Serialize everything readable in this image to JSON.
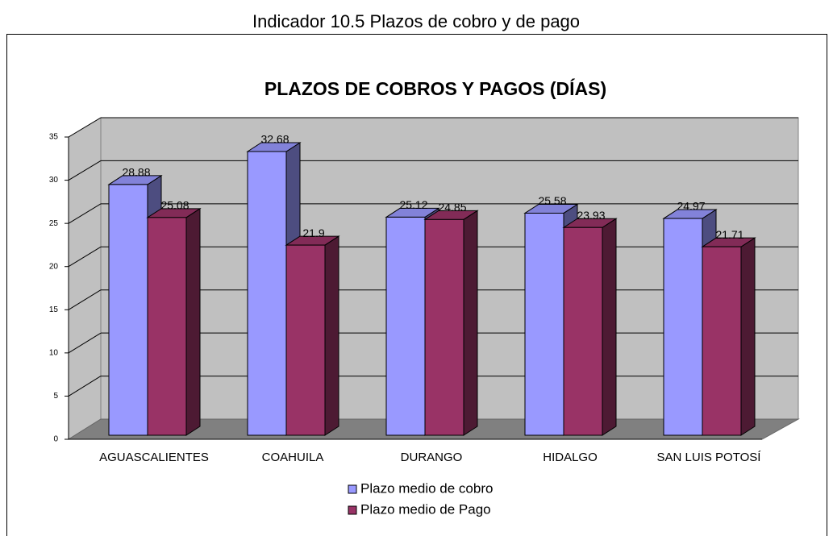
{
  "page_title": "Indicador 10.5   Plazos de cobro y de pago",
  "chart_data": {
    "type": "bar3d",
    "title": "PLAZOS DE COBROS Y PAGOS (DÍAS)",
    "categories": [
      "AGUASCALIENTES",
      "COAHUILA",
      "DURANGO",
      "HIDALGO",
      "SAN LUIS POTOSÍ"
    ],
    "series": [
      {
        "name": "Plazo medio de cobro",
        "color": "#9999ff",
        "values": [
          28.88,
          32.68,
          25.12,
          25.58,
          24.97
        ]
      },
      {
        "name": "Plazo medio de Pago",
        "color": "#993366",
        "values": [
          25.08,
          21.9,
          24.85,
          23.93,
          21.71
        ]
      }
    ],
    "ylim": [
      0,
      35
    ],
    "yticks": [
      0,
      5,
      10,
      15,
      20,
      25,
      30,
      35
    ],
    "grid": true,
    "legend": "bottom"
  }
}
